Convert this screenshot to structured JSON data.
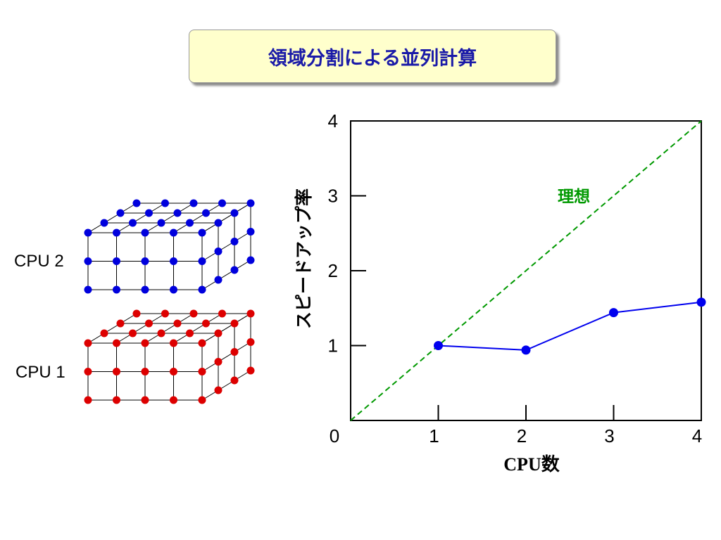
{
  "slide": {
    "title": "領域分割による並列計算"
  },
  "lattice": {
    "blocks": [
      {
        "label": "CPU 2",
        "color": "#0000dd"
      },
      {
        "label": "CPU 1",
        "color": "#dd0000"
      }
    ]
  },
  "chart_data": {
    "type": "line",
    "xlabel": "CPU数",
    "ylabel": "スピードアップ率",
    "xlim": [
      0,
      4
    ],
    "ylim": [
      0,
      4
    ],
    "xticks": [
      0,
      1,
      2,
      3,
      4
    ],
    "yticks": [
      1,
      2,
      3,
      4
    ],
    "series": [
      {
        "name": "",
        "color": "#0000ee",
        "style": "solid",
        "markers": true,
        "x": [
          1,
          2,
          3,
          4
        ],
        "y": [
          1.0,
          0.94,
          1.44,
          1.58
        ]
      },
      {
        "name": "理想",
        "color": "#009900",
        "style": "dashed",
        "markers": false,
        "x": [
          0,
          4
        ],
        "y": [
          0,
          4
        ]
      }
    ]
  }
}
